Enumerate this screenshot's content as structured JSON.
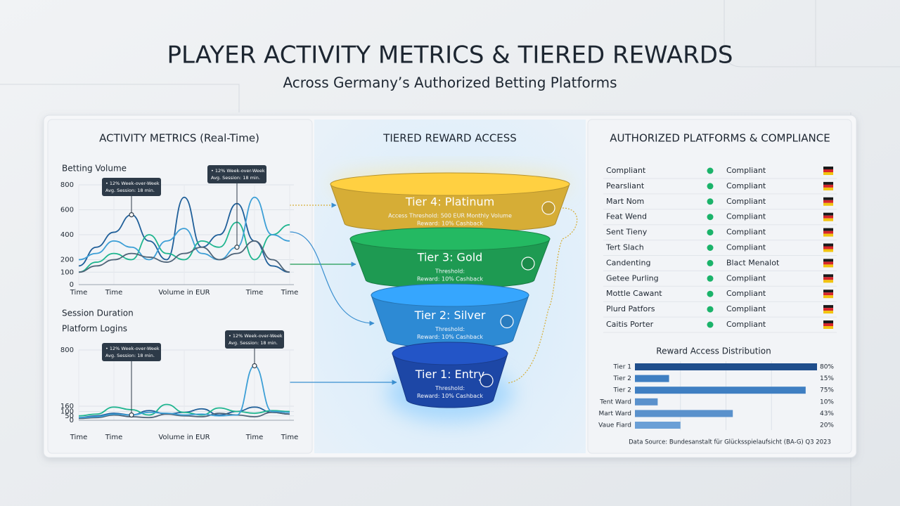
{
  "header": {
    "title": "PLAYER ACTIVITY METRICS & TIERED REWARDS",
    "subtitle": "Across Germany’s Authorized Betting Platforms"
  },
  "activity": {
    "title": "ACTIVITY METRICS (Real-Time)",
    "charts": [
      {
        "type": "line",
        "labels": [
          "Betting Volume"
        ],
        "x": [
          0,
          1,
          2,
          3,
          4,
          5,
          6,
          7,
          8,
          9,
          10,
          11,
          12
        ],
        "xlim": [
          0,
          12
        ],
        "xticks": [
          {
            "value": 0,
            "label": "Time"
          },
          {
            "value": 2,
            "label": "Time"
          },
          {
            "value": 6,
            "label": "Volume in EUR"
          },
          {
            "value": 10,
            "label": "Time"
          },
          {
            "value": 12,
            "label": "Time"
          }
        ],
        "ylim": [
          0,
          800
        ],
        "yticks": [
          0,
          100,
          200,
          400,
          600,
          800
        ],
        "series": [
          {
            "color": "#1f5f99",
            "values": [
              150,
              300,
              420,
              560,
              350,
              200,
              700,
              300,
              400,
              650,
              350,
              150,
              100
            ]
          },
          {
            "color": "#1fb58f",
            "values": [
              100,
              180,
              250,
              200,
              400,
              250,
              200,
              350,
              300,
              500,
              200,
              400,
              480
            ]
          },
          {
            "color": "#3d9fd6",
            "values": [
              200,
              250,
              350,
              300,
              200,
              350,
              450,
              250,
              200,
              300,
              700,
              400,
              350
            ]
          },
          {
            "color": "#4f6478",
            "values": [
              100,
              150,
              200,
              250,
              220,
              180,
              250,
              300,
              200,
              250,
              350,
              200,
              100
            ]
          }
        ],
        "annotations": [
          {
            "lines": [
              "• 12% Week-over-Week",
              "Avg. Session: 18 min."
            ]
          },
          {
            "lines": [
              "• 12% Week-over-Week",
              "Avg. Session: 18 min."
            ]
          }
        ]
      },
      {
        "type": "line",
        "labels": [
          "Session Duration",
          "Platform Logins"
        ],
        "x": [
          0,
          1,
          2,
          3,
          4,
          5,
          6,
          7,
          8,
          9,
          10,
          11,
          12
        ],
        "xlim": [
          0,
          12
        ],
        "xticks": [
          {
            "value": 0,
            "label": "Time"
          },
          {
            "value": 2,
            "label": "Time"
          },
          {
            "value": 6,
            "label": "Volume in EUR"
          },
          {
            "value": 10,
            "label": "Time"
          },
          {
            "value": 12,
            "label": "Time"
          }
        ],
        "ylim": [
          0,
          800
        ],
        "yticks": [
          0,
          50,
          100,
          160,
          800
        ],
        "series": [
          {
            "color": "#1f5f99",
            "values": [
              30,
              50,
              80,
              60,
              110,
              70,
              90,
              130,
              60,
              100,
              150,
              90,
              70
            ]
          },
          {
            "color": "#1fb58f",
            "values": [
              50,
              70,
              150,
              120,
              60,
              180,
              90,
              60,
              140,
              100,
              80,
              110,
              100
            ]
          },
          {
            "color": "#4f6478",
            "values": [
              20,
              30,
              60,
              40,
              30,
              70,
              50,
              40,
              80,
              60,
              40,
              90,
              70
            ]
          },
          {
            "color": "#3d9fd6",
            "values": [
              30,
              40,
              70,
              60,
              90,
              80,
              60,
              70,
              50,
              60,
              620,
              100,
              90
            ]
          }
        ],
        "annotations": [
          {
            "lines": [
              "• 12% Week-over-Week",
              "Avg. Session: 18 min."
            ]
          },
          {
            "lines": [
              "• 12% Week-over-Week",
              "Avg. Session: 18 min."
            ]
          }
        ]
      }
    ]
  },
  "rewards": {
    "title": "TIERED REWARD ACCESS",
    "tiers": [
      {
        "name": "Tier 4: Platinum",
        "color": "#d6ad36",
        "lines": [
          "Access Threshold: 500 EUR Monthly Volume",
          "Reward: 10% Cashback"
        ]
      },
      {
        "name": "Tier 3: Gold",
        "color": "#1e9a52",
        "lines": [
          "Threshold:",
          "Reward: 10% Cashback"
        ]
      },
      {
        "name": "Tier 2: Silver",
        "color": "#2d8ad4",
        "lines": [
          "Threshold:",
          "Reward: 10% Cashback"
        ]
      },
      {
        "name": "Tier 1: Entry",
        "color": "#1d47a6",
        "lines": [
          "Threshold:",
          "Reward: 10% Cashback"
        ]
      }
    ]
  },
  "compliance": {
    "title": "AUTHORIZED PLATFORMS & COMPLIANCE",
    "rows": [
      [
        "Compliant",
        "Compliant"
      ],
      [
        "Pearsliant",
        "Compliant"
      ],
      [
        "Mart Nom",
        "Compliant"
      ],
      [
        "Feat Wend",
        "Compliant"
      ],
      [
        "Sent Tieny",
        "Compliant"
      ],
      [
        "Tert Slach",
        "Compliant"
      ],
      [
        "Candenting",
        "Blact Menalot"
      ],
      [
        "Getee Purling",
        "Compliant"
      ],
      [
        "Mottle Cawant",
        "Compliant"
      ],
      [
        "Plurd Patfors",
        "Compliant"
      ],
      [
        "Caitis Porter",
        "Compliant"
      ]
    ],
    "distribution": {
      "type": "bar",
      "title": "Reward Access Distribution",
      "categories": [
        "Tier 1",
        "Tier 2",
        "Tier 2",
        "Tent Ward",
        "Mart Ward",
        "Vaue Fiard"
      ],
      "values": [
        80,
        15,
        75,
        10,
        43,
        20
      ],
      "value_labels": [
        "80%",
        "15%",
        "75%",
        "10%",
        "43%",
        "20%"
      ],
      "xlim": [
        0,
        80
      ],
      "colors": [
        "#1f4e8c",
        "#3f7fc2",
        "#3f7fc2",
        "#5a91cc",
        "#5a91cc",
        "#6a9fd6"
      ],
      "source": "Data Source: Bundesanstalt für Glücksspielaufsicht (BA-G) Q3 2023"
    }
  }
}
